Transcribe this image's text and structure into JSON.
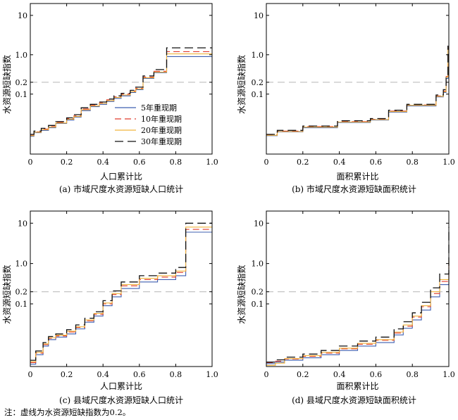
{
  "threshold": 0.2,
  "note": "注：虚线为水资源短缺指数为0.2。",
  "chart_data": [
    {
      "type": "line",
      "step": true,
      "caption": "(a) 市域尺度水资源短缺人口统计",
      "xlabel": "人口累计比",
      "ylabel": "水资源短缺指数",
      "xlim": [
        0,
        1
      ],
      "xticks": [
        "0",
        "0.2",
        "0.4",
        "0.6",
        "0.8",
        "1.0"
      ],
      "yticks": [
        "10",
        "1.0",
        "0.2",
        "0.1"
      ],
      "ylog": true,
      "ymin": 0.003,
      "ymax": 20,
      "legend": {
        "position": "center-right",
        "entries": [
          "5年重现期",
          "10年重现期",
          "20年重现期",
          "30年重现期"
        ]
      },
      "series": [
        {
          "name": "5年重现期",
          "color": "#3f5fb0",
          "dash": "",
          "x": [
            0,
            0.02,
            0.06,
            0.1,
            0.14,
            0.2,
            0.24,
            0.28,
            0.33,
            0.38,
            0.42,
            0.46,
            0.5,
            0.55,
            0.58,
            0.62,
            0.68,
            0.75,
            1.0
          ],
          "y": [
            0.0085,
            0.0105,
            0.012,
            0.014,
            0.018,
            0.022,
            0.026,
            0.038,
            0.048,
            0.055,
            0.065,
            0.078,
            0.09,
            0.11,
            0.13,
            0.25,
            0.35,
            0.9,
            0.9
          ]
        },
        {
          "name": "10年重现期",
          "color": "#e03a2c",
          "dash": "9,5",
          "x": [
            0,
            0.02,
            0.06,
            0.1,
            0.14,
            0.2,
            0.24,
            0.28,
            0.33,
            0.38,
            0.42,
            0.46,
            0.5,
            0.55,
            0.58,
            0.62,
            0.68,
            0.75,
            1.0
          ],
          "y": [
            0.009,
            0.011,
            0.013,
            0.015,
            0.019,
            0.024,
            0.028,
            0.042,
            0.052,
            0.06,
            0.072,
            0.085,
            0.1,
            0.12,
            0.14,
            0.27,
            0.38,
            1.2,
            1.2
          ]
        },
        {
          "name": "20年重现期",
          "color": "#f0b33c",
          "dash": "",
          "x": [
            0,
            0.02,
            0.06,
            0.1,
            0.14,
            0.2,
            0.24,
            0.28,
            0.33,
            0.38,
            0.42,
            0.46,
            0.5,
            0.55,
            0.58,
            0.62,
            0.68,
            0.75,
            1.0
          ],
          "y": [
            0.0088,
            0.0108,
            0.0125,
            0.0145,
            0.0185,
            0.023,
            0.027,
            0.04,
            0.05,
            0.058,
            0.068,
            0.082,
            0.095,
            0.115,
            0.135,
            0.26,
            0.36,
            1.05,
            1.05
          ]
        },
        {
          "name": "30年重现期",
          "color": "#111111",
          "dash": "12,6",
          "x": [
            0,
            0.02,
            0.06,
            0.1,
            0.14,
            0.2,
            0.24,
            0.28,
            0.33,
            0.38,
            0.42,
            0.46,
            0.5,
            0.55,
            0.58,
            0.62,
            0.68,
            0.75,
            1.0
          ],
          "y": [
            0.0095,
            0.0115,
            0.0135,
            0.016,
            0.02,
            0.025,
            0.03,
            0.045,
            0.055,
            0.063,
            0.075,
            0.09,
            0.105,
            0.125,
            0.15,
            0.29,
            0.42,
            1.5,
            1.5
          ]
        }
      ]
    },
    {
      "type": "line",
      "step": true,
      "caption": "(b) 市域尺度水资源短缺面积统计",
      "xlabel": "面积累计比",
      "ylabel": "水资源短缺指数",
      "xlim": [
        0,
        1
      ],
      "xticks": [
        "0",
        "0.2",
        "0.4",
        "0.6",
        "0.8",
        "1.0"
      ],
      "yticks": [
        "10",
        "1.0",
        "0.2",
        "0.1"
      ],
      "ylog": true,
      "ymin": 0.003,
      "ymax": 20,
      "legend": null,
      "series": [
        {
          "name": "",
          "color": "#3f5fb0",
          "dash": "",
          "x": [
            0,
            0.06,
            0.2,
            0.39,
            0.57,
            0.67,
            0.77,
            0.93,
            0.97,
            0.985,
            0.995
          ],
          "y": [
            0.0088,
            0.011,
            0.014,
            0.019,
            0.022,
            0.035,
            0.05,
            0.085,
            0.11,
            0.25,
            1.5
          ]
        },
        {
          "name": "",
          "color": "#e03a2c",
          "dash": "9,5",
          "x": [
            0,
            0.06,
            0.2,
            0.39,
            0.57,
            0.67,
            0.77,
            0.93,
            0.97,
            0.985,
            0.995
          ],
          "y": [
            0.0092,
            0.0115,
            0.015,
            0.02,
            0.023,
            0.037,
            0.053,
            0.09,
            0.12,
            0.28,
            1.6
          ]
        },
        {
          "name": "",
          "color": "#f0b33c",
          "dash": "",
          "x": [
            0,
            0.06,
            0.2,
            0.39,
            0.57,
            0.67,
            0.77,
            0.93,
            0.97,
            0.985,
            0.995
          ],
          "y": [
            0.009,
            0.0112,
            0.0145,
            0.0195,
            0.0225,
            0.036,
            0.052,
            0.088,
            0.115,
            0.27,
            1.55
          ]
        },
        {
          "name": "",
          "color": "#111111",
          "dash": "12,6",
          "x": [
            0,
            0.06,
            0.2,
            0.39,
            0.57,
            0.67,
            0.77,
            0.93,
            0.97,
            0.985,
            0.995
          ],
          "y": [
            0.0095,
            0.012,
            0.0155,
            0.021,
            0.024,
            0.039,
            0.055,
            0.095,
            0.13,
            0.3,
            1.7
          ]
        }
      ]
    },
    {
      "type": "line",
      "step": true,
      "caption": "(c) 县域尺度水资源短缺人口统计",
      "xlabel": "人口累计比",
      "ylabel": "水资源短缺指数",
      "xlim": [
        0,
        1
      ],
      "xticks": [
        "0",
        "0.2",
        "0.4",
        "0.6",
        "0.8",
        "1.0"
      ],
      "yticks": [
        "10",
        "1.0",
        "0.2",
        "0.1"
      ],
      "ylog": true,
      "ymin": 0.0028,
      "ymax": 20,
      "legend": null,
      "series": [
        {
          "name": "",
          "color": "#3f5fb0",
          "dash": "",
          "x": [
            0,
            0.03,
            0.07,
            0.1,
            0.14,
            0.2,
            0.25,
            0.3,
            0.35,
            0.4,
            0.45,
            0.5,
            0.6,
            0.7,
            0.8,
            0.855,
            1.0
          ],
          "y": [
            0.0032,
            0.0055,
            0.009,
            0.013,
            0.015,
            0.018,
            0.024,
            0.035,
            0.05,
            0.09,
            0.15,
            0.24,
            0.35,
            0.4,
            0.5,
            6.0,
            6.0
          ]
        },
        {
          "name": "",
          "color": "#e03a2c",
          "dash": "9,5",
          "x": [
            0,
            0.03,
            0.07,
            0.1,
            0.14,
            0.2,
            0.25,
            0.3,
            0.35,
            0.4,
            0.45,
            0.5,
            0.6,
            0.7,
            0.8,
            0.855,
            1.0
          ],
          "y": [
            0.0035,
            0.006,
            0.0098,
            0.014,
            0.016,
            0.02,
            0.026,
            0.038,
            0.055,
            0.1,
            0.17,
            0.28,
            0.4,
            0.46,
            0.6,
            7.0,
            7.0
          ]
        },
        {
          "name": "",
          "color": "#f0b33c",
          "dash": "",
          "x": [
            0,
            0.03,
            0.07,
            0.1,
            0.14,
            0.2,
            0.25,
            0.3,
            0.35,
            0.4,
            0.45,
            0.5,
            0.6,
            0.7,
            0.8,
            0.855,
            1.0
          ],
          "y": [
            0.0037,
            0.0063,
            0.0102,
            0.0145,
            0.0168,
            0.021,
            0.027,
            0.04,
            0.058,
            0.105,
            0.18,
            0.3,
            0.43,
            0.5,
            0.65,
            8.0,
            8.0
          ]
        },
        {
          "name": "",
          "color": "#111111",
          "dash": "12,6",
          "x": [
            0,
            0.03,
            0.07,
            0.1,
            0.14,
            0.2,
            0.25,
            0.3,
            0.35,
            0.4,
            0.45,
            0.5,
            0.6,
            0.7,
            0.8,
            0.855,
            1.0
          ],
          "y": [
            0.004,
            0.0068,
            0.011,
            0.0155,
            0.018,
            0.023,
            0.03,
            0.044,
            0.064,
            0.12,
            0.21,
            0.35,
            0.5,
            0.58,
            0.8,
            10.0,
            10.0
          ]
        }
      ]
    },
    {
      "type": "line",
      "step": true,
      "caption": "(d) 县域尺度水资源短缺面积统计",
      "xlabel": "面积累计比",
      "ylabel": "水资源短缺指数",
      "xlim": [
        0,
        1
      ],
      "xticks": [
        "0",
        "0.2",
        "0.4",
        "0.6",
        "0.8",
        "1.0"
      ],
      "yticks": [
        "10",
        "1.0",
        "0.2",
        "0.1"
      ],
      "ylog": true,
      "ymin": 0.0028,
      "ymax": 20,
      "legend": null,
      "series": [
        {
          "name": "",
          "color": "#3f5fb0",
          "dash": "",
          "x": [
            0,
            0.05,
            0.1,
            0.2,
            0.3,
            0.4,
            0.5,
            0.6,
            0.7,
            0.75,
            0.8,
            0.85,
            0.9,
            0.95,
            1.0
          ],
          "y": [
            0.0033,
            0.0036,
            0.004,
            0.0046,
            0.0055,
            0.007,
            0.009,
            0.011,
            0.017,
            0.025,
            0.04,
            0.07,
            0.15,
            0.3,
            0.8
          ]
        },
        {
          "name": "",
          "color": "#e03a2c",
          "dash": "9,5",
          "x": [
            0,
            0.05,
            0.1,
            0.2,
            0.3,
            0.4,
            0.5,
            0.6,
            0.7,
            0.75,
            0.8,
            0.85,
            0.9,
            0.95,
            1.0
          ],
          "y": [
            0.0035,
            0.0038,
            0.0043,
            0.005,
            0.006,
            0.0077,
            0.01,
            0.0125,
            0.019,
            0.028,
            0.047,
            0.085,
            0.18,
            0.36,
            1.0
          ]
        },
        {
          "name": "",
          "color": "#f0b33c",
          "dash": "",
          "x": [
            0,
            0.05,
            0.1,
            0.2,
            0.3,
            0.4,
            0.5,
            0.6,
            0.7,
            0.75,
            0.8,
            0.85,
            0.9,
            0.95,
            1.0
          ],
          "y": [
            0.003,
            0.0034,
            0.0044,
            0.0052,
            0.0063,
            0.008,
            0.0105,
            0.013,
            0.02,
            0.03,
            0.05,
            0.09,
            0.2,
            0.4,
            1.2
          ]
        },
        {
          "name": "",
          "color": "#111111",
          "dash": "12,6",
          "x": [
            0,
            0.05,
            0.1,
            0.2,
            0.3,
            0.4,
            0.5,
            0.6,
            0.7,
            0.75,
            0.8,
            0.85,
            0.9,
            0.95,
            1.0
          ],
          "y": [
            0.0036,
            0.0041,
            0.0048,
            0.0057,
            0.007,
            0.009,
            0.012,
            0.015,
            0.024,
            0.036,
            0.06,
            0.11,
            0.25,
            0.55,
            8.0
          ]
        }
      ]
    }
  ]
}
